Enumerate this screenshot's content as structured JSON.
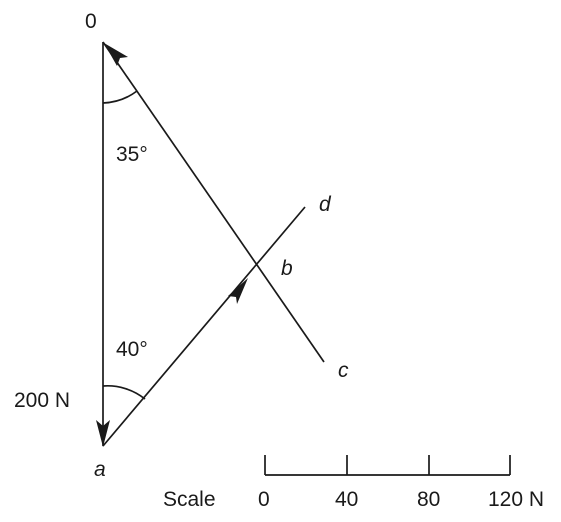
{
  "labels": {
    "origin": "0",
    "point_a": "a",
    "point_b": "b",
    "point_c": "c",
    "point_d": "d",
    "angle_top": "35°",
    "angle_bottom": "40°",
    "force_label": "200 N"
  },
  "scale": {
    "title": "Scale",
    "ticks": [
      "0",
      "40",
      "80",
      "120 N"
    ]
  }
}
